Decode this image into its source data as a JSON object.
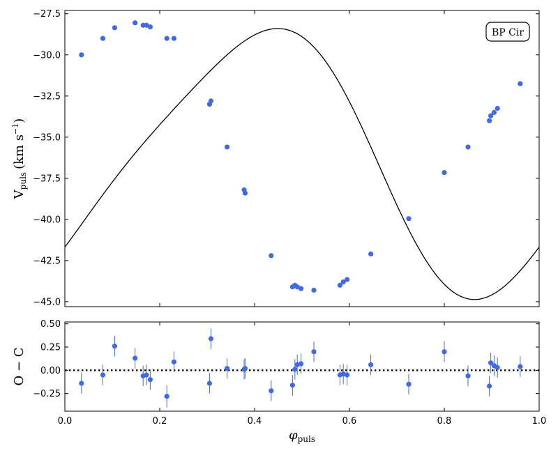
{
  "chart_data": [
    {
      "type": "scatter",
      "panel": "top",
      "legend_label": "BP Cir",
      "legend_position": "top-right",
      "ylabel_main": "V",
      "ylabel_sub": "puls",
      "ylabel_unit": "(km s",
      "ylabel_exp": "−1",
      "ylabel_close": ")",
      "xlim": [
        0.0,
        1.0
      ],
      "ylim": [
        -45.3,
        -27.3
      ],
      "yticks": [
        -27.5,
        -30.0,
        -32.5,
        -35.0,
        -37.5,
        -40.0,
        -42.5,
        -45.0
      ],
      "ytick_labels": [
        "−27.5",
        "−30.0",
        "−32.5",
        "−35.0",
        "−37.5",
        "−40.0",
        "−42.5",
        "−45.0"
      ],
      "xticks": [
        0.0,
        0.2,
        0.4,
        0.6,
        0.8,
        1.0
      ],
      "marker_color": "#4169e1",
      "fit_curve": {
        "description_visible": "solid black model curve",
        "color": "#000000",
        "model": {
          "mean": -36.3,
          "c1": 7.9,
          "p1": 0.4,
          "c2": 1.25,
          "p2": 0.55
        }
      },
      "points": [
        {
          "x": 0.035,
          "y": -30.0
        },
        {
          "x": 0.08,
          "y": -29.0
        },
        {
          "x": 0.105,
          "y": -28.35
        },
        {
          "x": 0.148,
          "y": -28.05
        },
        {
          "x": 0.165,
          "y": -28.2
        },
        {
          "x": 0.172,
          "y": -28.2
        },
        {
          "x": 0.18,
          "y": -28.3
        },
        {
          "x": 0.215,
          "y": -29.0
        },
        {
          "x": 0.23,
          "y": -29.0
        },
        {
          "x": 0.305,
          "y": -33.0
        },
        {
          "x": 0.308,
          "y": -32.8
        },
        {
          "x": 0.342,
          "y": -35.6
        },
        {
          "x": 0.378,
          "y": -38.2
        },
        {
          "x": 0.38,
          "y": -38.4
        },
        {
          "x": 0.435,
          "y": -42.2
        },
        {
          "x": 0.48,
          "y": -44.1
        },
        {
          "x": 0.485,
          "y": -44.0
        },
        {
          "x": 0.49,
          "y": -44.1
        },
        {
          "x": 0.498,
          "y": -44.2
        },
        {
          "x": 0.525,
          "y": -44.3
        },
        {
          "x": 0.58,
          "y": -44.0
        },
        {
          "x": 0.587,
          "y": -43.8
        },
        {
          "x": 0.595,
          "y": -43.65
        },
        {
          "x": 0.645,
          "y": -42.1
        },
        {
          "x": 0.725,
          "y": -39.95
        },
        {
          "x": 0.8,
          "y": -37.15
        },
        {
          "x": 0.85,
          "y": -35.6
        },
        {
          "x": 0.895,
          "y": -34.0
        },
        {
          "x": 0.898,
          "y": -33.7
        },
        {
          "x": 0.905,
          "y": -33.5
        },
        {
          "x": 0.912,
          "y": -33.25
        },
        {
          "x": 0.96,
          "y": -31.75
        }
      ]
    },
    {
      "type": "scatter",
      "panel": "bottom",
      "xlabel_main": "φ",
      "xlabel_sub": "puls",
      "ylabel": "O − C",
      "xlim": [
        0.0,
        1.0
      ],
      "ylim": [
        -0.44,
        0.52
      ],
      "yticks": [
        0.5,
        0.25,
        0.0,
        -0.25
      ],
      "ytick_labels": [
        "0.50",
        "0.25",
        "0.00",
        "−0.25"
      ],
      "xticks": [
        0.0,
        0.2,
        0.4,
        0.6,
        0.8,
        1.0
      ],
      "xtick_labels": [
        "0.0",
        "0.2",
        "0.4",
        "0.6",
        "0.8",
        "1.0"
      ],
      "zero_line": {
        "y": 0.0,
        "style": "dotted",
        "color": "#000000"
      },
      "marker_color": "#4169e1",
      "points": [
        {
          "x": 0.035,
          "y": -0.14,
          "err": 0.11
        },
        {
          "x": 0.08,
          "y": -0.05,
          "err": 0.11
        },
        {
          "x": 0.105,
          "y": 0.26,
          "err": 0.11
        },
        {
          "x": 0.148,
          "y": 0.13,
          "err": 0.11
        },
        {
          "x": 0.165,
          "y": -0.06,
          "err": 0.11
        },
        {
          "x": 0.172,
          "y": -0.05,
          "err": 0.11
        },
        {
          "x": 0.18,
          "y": -0.1,
          "err": 0.11
        },
        {
          "x": 0.215,
          "y": -0.28,
          "err": 0.12
        },
        {
          "x": 0.23,
          "y": 0.09,
          "err": 0.11
        },
        {
          "x": 0.305,
          "y": -0.14,
          "err": 0.11
        },
        {
          "x": 0.308,
          "y": 0.34,
          "err": 0.11
        },
        {
          "x": 0.342,
          "y": 0.02,
          "err": 0.11
        },
        {
          "x": 0.378,
          "y": 0.01,
          "err": 0.11
        },
        {
          "x": 0.38,
          "y": 0.02,
          "err": 0.11
        },
        {
          "x": 0.435,
          "y": -0.22,
          "err": 0.11
        },
        {
          "x": 0.48,
          "y": -0.16,
          "err": 0.11
        },
        {
          "x": 0.485,
          "y": 0.01,
          "err": 0.11
        },
        {
          "x": 0.49,
          "y": 0.06,
          "err": 0.11
        },
        {
          "x": 0.498,
          "y": 0.07,
          "err": 0.11
        },
        {
          "x": 0.525,
          "y": 0.2,
          "err": 0.11
        },
        {
          "x": 0.58,
          "y": -0.05,
          "err": 0.11
        },
        {
          "x": 0.587,
          "y": -0.04,
          "err": 0.11
        },
        {
          "x": 0.595,
          "y": -0.05,
          "err": 0.11
        },
        {
          "x": 0.645,
          "y": 0.06,
          "err": 0.11
        },
        {
          "x": 0.725,
          "y": -0.15,
          "err": 0.11
        },
        {
          "x": 0.8,
          "y": 0.2,
          "err": 0.11
        },
        {
          "x": 0.85,
          "y": -0.06,
          "err": 0.11
        },
        {
          "x": 0.895,
          "y": -0.17,
          "err": 0.11
        },
        {
          "x": 0.898,
          "y": 0.08,
          "err": 0.11
        },
        {
          "x": 0.905,
          "y": 0.05,
          "err": 0.11
        },
        {
          "x": 0.912,
          "y": 0.03,
          "err": 0.11
        },
        {
          "x": 0.96,
          "y": 0.04,
          "err": 0.11
        }
      ]
    }
  ]
}
